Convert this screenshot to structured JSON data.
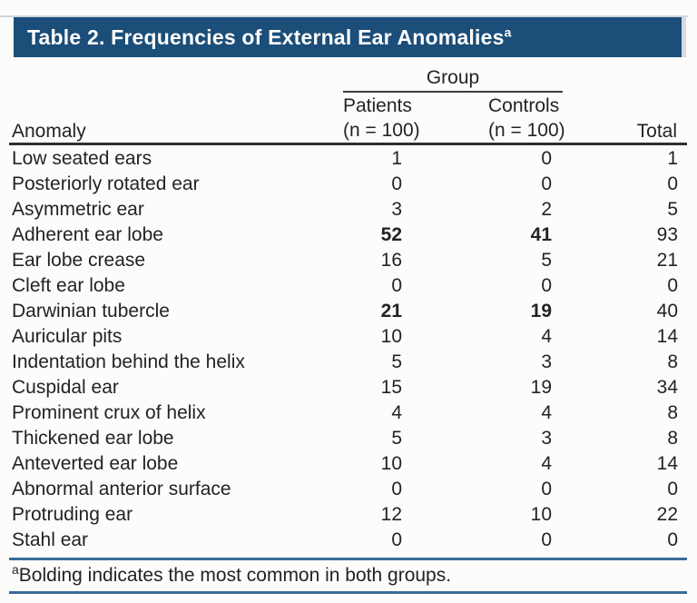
{
  "title": {
    "text": "Table 2. Frequencies of External Ear Anomalies",
    "superscript": "a"
  },
  "table": {
    "group_header": "Group",
    "columns": {
      "anomaly": "Anomaly",
      "patients_line1": "Patients",
      "patients_line2": "(n = 100)",
      "controls_line1": "Controls",
      "controls_line2": "(n = 100)",
      "total": "Total"
    },
    "rows": [
      {
        "label": "Low seated ears",
        "patients": "1",
        "controls": "0",
        "total": "1",
        "bold": false
      },
      {
        "label": "Posteriorly rotated ear",
        "patients": "0",
        "controls": "0",
        "total": "0",
        "bold": false
      },
      {
        "label": "Asymmetric ear",
        "patients": "3",
        "controls": "2",
        "total": "5",
        "bold": false
      },
      {
        "label": "Adherent ear lobe",
        "patients": "52",
        "controls": "41",
        "total": "93",
        "bold": true
      },
      {
        "label": "Ear lobe crease",
        "patients": "16",
        "controls": "5",
        "total": "21",
        "bold": false
      },
      {
        "label": "Cleft ear lobe",
        "patients": "0",
        "controls": "0",
        "total": "0",
        "bold": false
      },
      {
        "label": "Darwinian tubercle",
        "patients": "21",
        "controls": "19",
        "total": "40",
        "bold": true
      },
      {
        "label": "Auricular pits",
        "patients": "10",
        "controls": "4",
        "total": "14",
        "bold": false
      },
      {
        "label": "Indentation behind the helix",
        "patients": "5",
        "controls": "3",
        "total": "8",
        "bold": false
      },
      {
        "label": "Cuspidal ear",
        "patients": "15",
        "controls": "19",
        "total": "34",
        "bold": false
      },
      {
        "label": "Prominent crux of helix",
        "patients": "4",
        "controls": "4",
        "total": "8",
        "bold": false
      },
      {
        "label": "Thickened ear lobe",
        "patients": "5",
        "controls": "3",
        "total": "8",
        "bold": false
      },
      {
        "label": "Anteverted ear lobe",
        "patients": "10",
        "controls": "4",
        "total": "14",
        "bold": false
      },
      {
        "label": "Abnormal anterior surface",
        "patients": "0",
        "controls": "0",
        "total": "0",
        "bold": false
      },
      {
        "label": "Protruding ear",
        "patients": "12",
        "controls": "10",
        "total": "22",
        "bold": false
      },
      {
        "label": "Stahl ear",
        "patients": "0",
        "controls": "0",
        "total": "0",
        "bold": false
      }
    ]
  },
  "footnote": {
    "marker": "a",
    "text": "Bolding indicates the most common in both groups."
  },
  "colors": {
    "title_bar_bg": "#1b4e78",
    "title_text": "#ffffff",
    "footnote_rule_blue": "#3a6a9b",
    "header_rule_dark": "#2f2f2f",
    "body_text": "#232323",
    "background": "#fcfcfa"
  }
}
